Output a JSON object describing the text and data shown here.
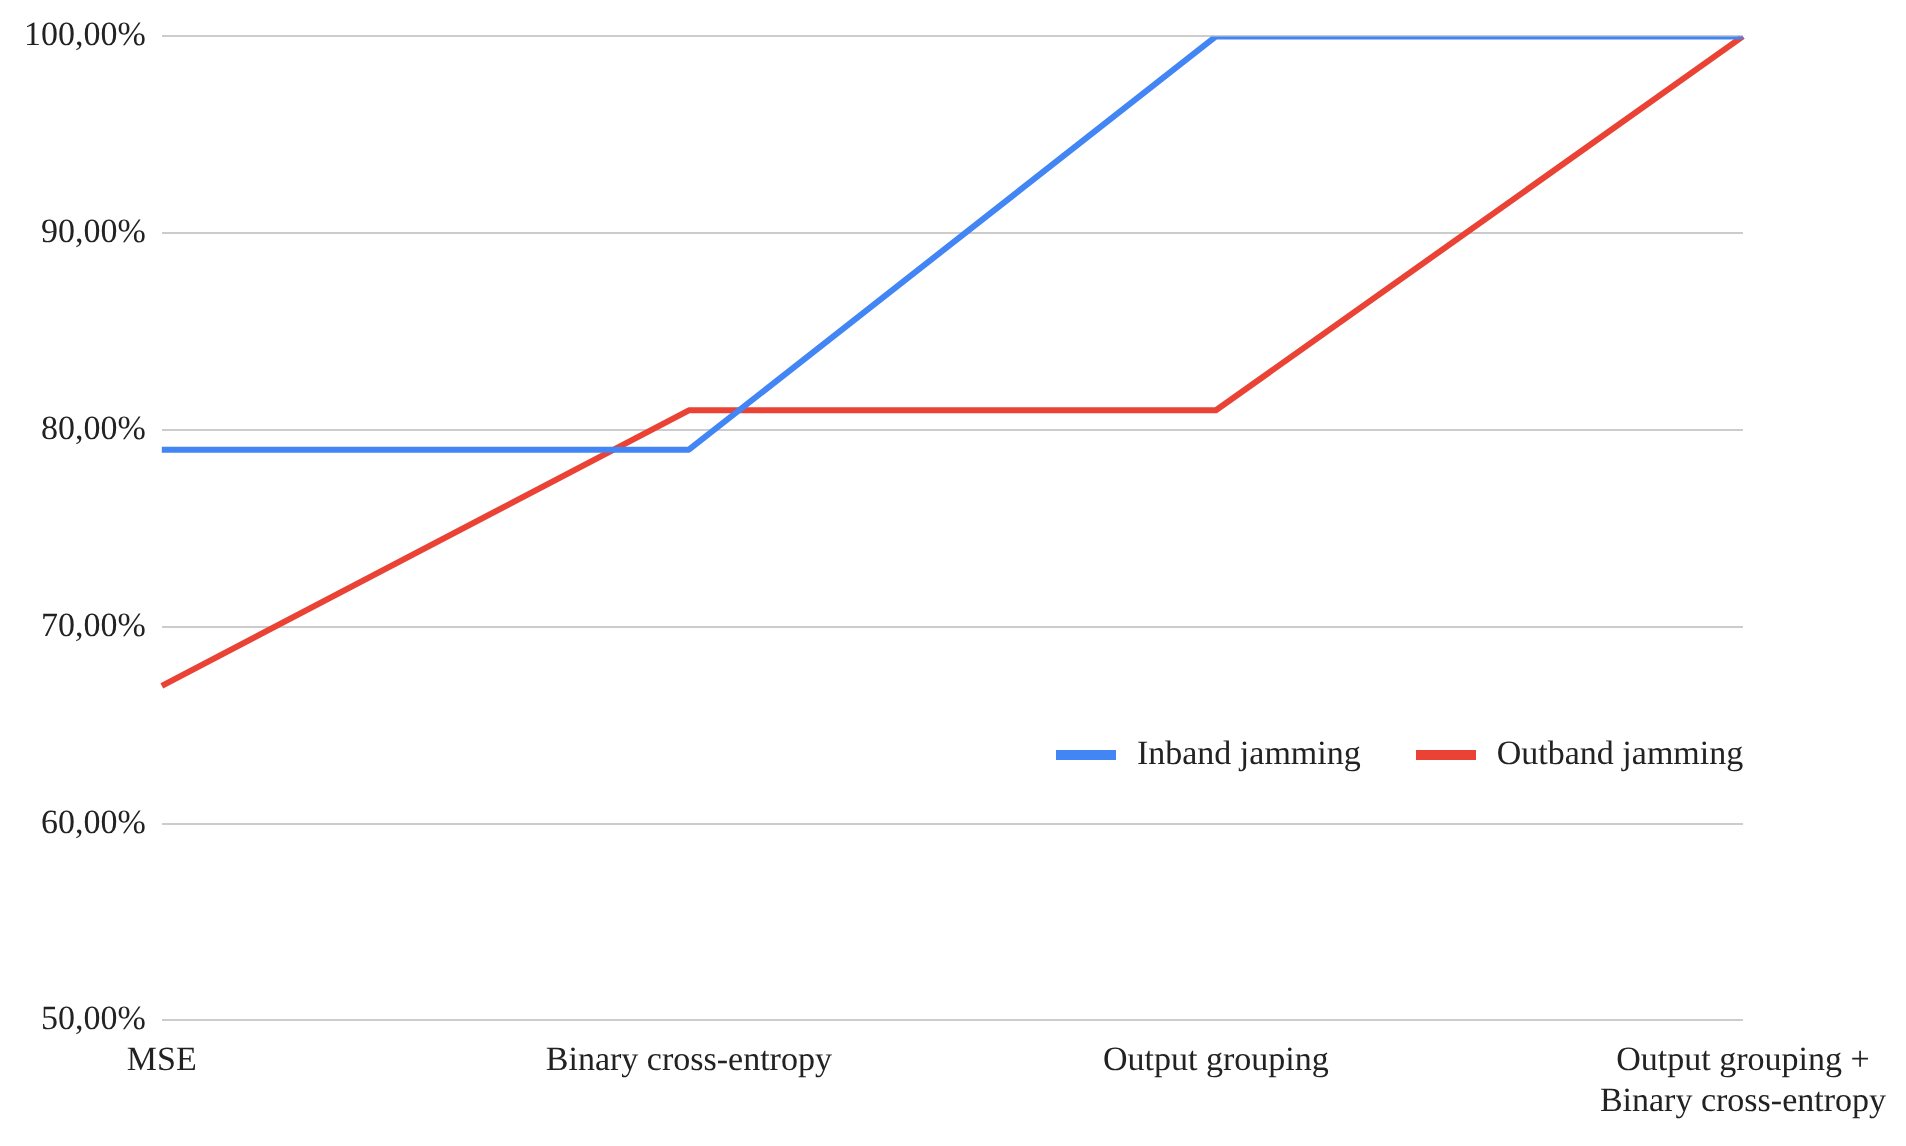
{
  "chart_data": {
    "type": "line",
    "categories": [
      "MSE",
      "Binary cross-entropy",
      "Output grouping",
      "Output grouping +\nBinary cross-entropy"
    ],
    "series": [
      {
        "name": "Inband jamming",
        "color": "#4285f4",
        "values": [
          79,
          79,
          100,
          100
        ]
      },
      {
        "name": "Outband jamming",
        "color": "#ea4335",
        "values": [
          67,
          81,
          81,
          100
        ]
      }
    ],
    "ylim": [
      50,
      100
    ],
    "yticks": [
      {
        "value": 50,
        "label": "50,00%"
      },
      {
        "value": 60,
        "label": "60,00%"
      },
      {
        "value": 70,
        "label": "70,00%"
      },
      {
        "value": 80,
        "label": "80,00%"
      },
      {
        "value": 90,
        "label": "90,00%"
      },
      {
        "value": 100,
        "label": "100,00%"
      }
    ],
    "grid": "y",
    "legend": "bottom right",
    "marker": "none",
    "line_style": "solid"
  }
}
